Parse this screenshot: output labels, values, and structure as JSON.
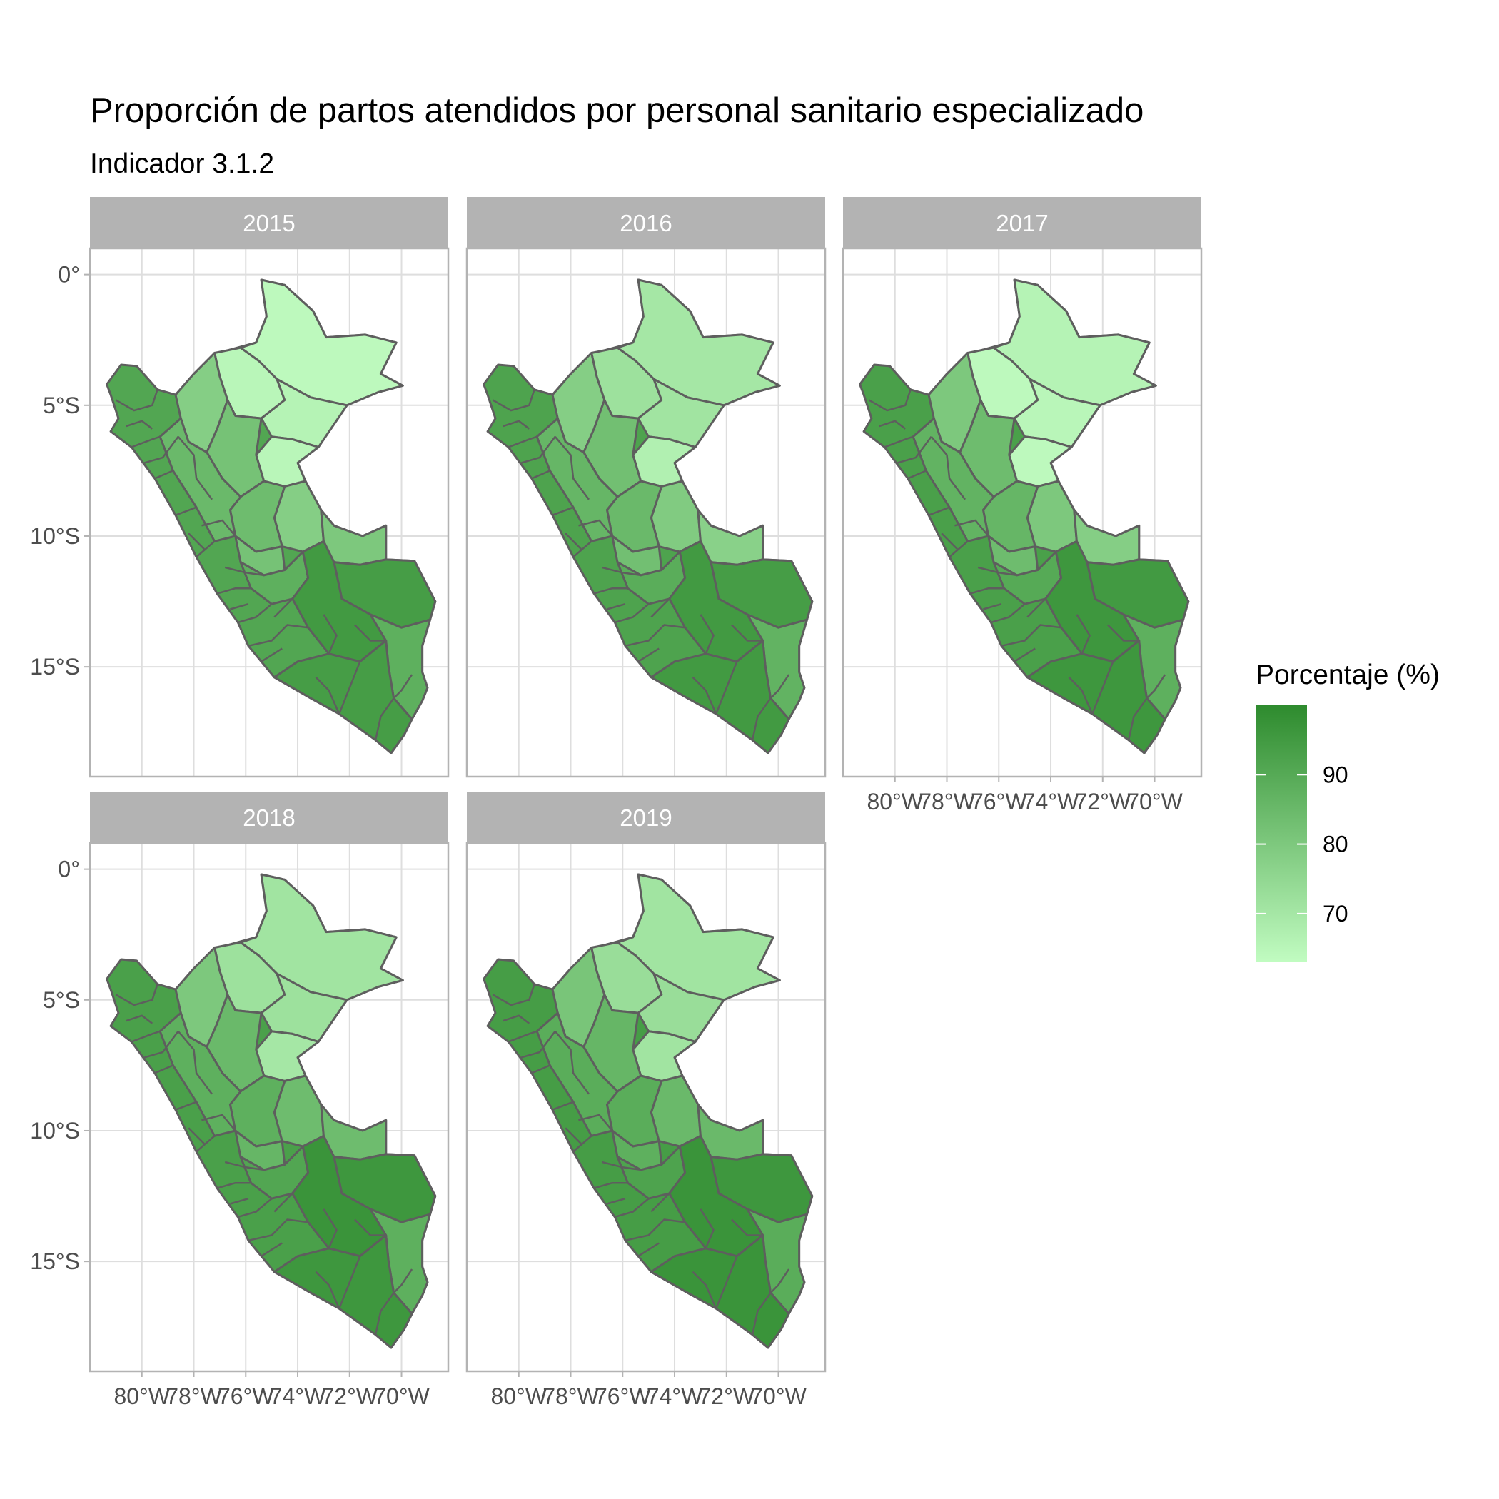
{
  "title": "Proporción de partos atendidos por personal sanitario especializado",
  "subtitle": "Indicador 3.1.2",
  "legend": {
    "title": "Porcentaje (%)",
    "labels": [
      "90",
      "80",
      "70"
    ],
    "values": [
      90,
      80,
      70
    ],
    "range": [
      63,
      100
    ],
    "colors": {
      "low": "#c1fcc1",
      "high": "#2e8b2e"
    }
  },
  "axes": {
    "y_ticks": [
      "0°",
      "5°S",
      "10°S",
      "15°S"
    ],
    "y_values": [
      0,
      -5,
      -10,
      -15
    ],
    "x_ticks": [
      "80°W",
      "78°W",
      "76°W",
      "74°W",
      "72°W",
      "70°W"
    ],
    "x_values": [
      -80,
      -78,
      -76,
      -74,
      -72,
      -70
    ],
    "lon_range": [
      -82,
      -68.2
    ],
    "lat_range": [
      -19.2,
      1.0
    ]
  },
  "chart_data": {
    "type": "heatmap",
    "title": "Proporción de partos atendidos por personal sanitario especializado",
    "subtitle": "Indicador 3.1.2",
    "facets": [
      {
        "label": "2015",
        "regions": {
          "loreto_ne": 64,
          "loreto_n": 65,
          "loreto_c": 66,
          "loreto_s": 65,
          "amazonas": 78,
          "san_martin": 82,
          "ucayali_n": 78,
          "ucayali_s": 80,
          "huanuco": 84,
          "pasco": 82,
          "junin": 88,
          "madre_de_dios": 94,
          "cusco": 95,
          "puno": 88,
          "coast": 91,
          "highlands_n": 85,
          "south": 94
        }
      },
      {
        "label": "2016",
        "regions": {
          "loreto_ne": 70,
          "loreto_n": 72,
          "loreto_c": 71,
          "loreto_s": 67,
          "amazonas": 78,
          "san_martin": 83,
          "ucayali_n": 79,
          "ucayali_s": 77,
          "huanuco": 85,
          "pasco": 83,
          "junin": 89,
          "madre_de_dios": 94,
          "cusco": 95,
          "puno": 87,
          "coast": 92,
          "highlands_n": 86,
          "south": 95
        }
      },
      {
        "label": "2017",
        "regions": {
          "loreto_ne": 66,
          "loreto_n": 64,
          "loreto_c": 65,
          "loreto_s": 64,
          "amazonas": 80,
          "san_martin": 84,
          "ucayali_n": 80,
          "ucayali_s": 78,
          "huanuco": 86,
          "pasco": 84,
          "junin": 90,
          "madre_de_dios": 95,
          "cusco": 96,
          "puno": 88,
          "coast": 93,
          "highlands_n": 87,
          "south": 96
        }
      },
      {
        "label": "2018",
        "regions": {
          "loreto_ne": 71,
          "loreto_n": 72,
          "loreto_c": 72,
          "loreto_s": 70,
          "amazonas": 80,
          "san_martin": 85,
          "ucayali_n": 84,
          "ucayali_s": 84,
          "huanuco": 88,
          "pasco": 86,
          "junin": 91,
          "madre_de_dios": 96,
          "cusco": 97,
          "puno": 88,
          "coast": 93,
          "highlands_n": 88,
          "south": 96
        }
      },
      {
        "label": "2019",
        "regions": {
          "loreto_ne": 71,
          "loreto_n": 73,
          "loreto_c": 73,
          "loreto_s": 71,
          "amazonas": 81,
          "san_martin": 86,
          "ucayali_n": 85,
          "ucayali_s": 85,
          "huanuco": 89,
          "pasco": 88,
          "junin": 92,
          "madre_de_dios": 96,
          "cusco": 97,
          "puno": 89,
          "coast": 94,
          "highlands_n": 89,
          "south": 97
        }
      }
    ]
  }
}
